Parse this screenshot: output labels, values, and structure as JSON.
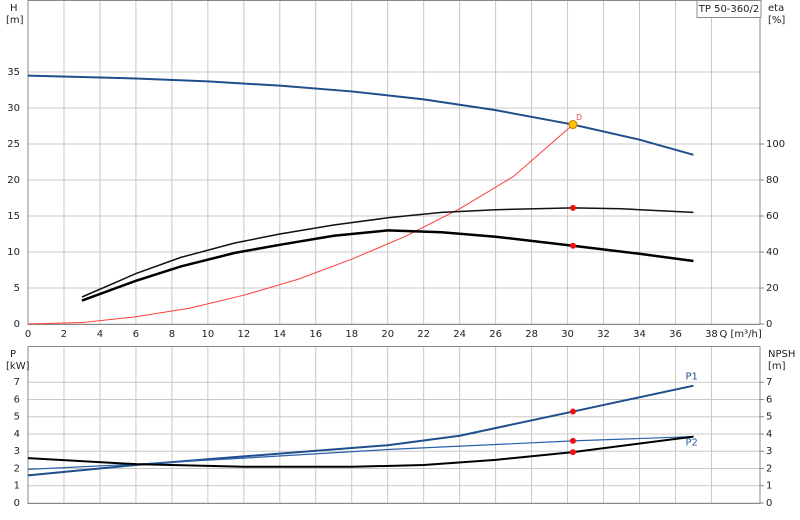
{
  "chart_data": [
    {
      "type": "line",
      "title": "TP 50-360/2",
      "y_label": "H",
      "y_unit": "[m]",
      "y2_label": "eta",
      "y2_unit": "[%]",
      "x_label": "Q [m³/h]",
      "annotation": "D",
      "xlim": [
        0,
        40.7
      ],
      "xticks": [
        0,
        2,
        4,
        6,
        8,
        10,
        12,
        14,
        16,
        18,
        20,
        22,
        24,
        26,
        28,
        30,
        32,
        34,
        36,
        38
      ],
      "ylim": [
        0,
        45
      ],
      "yticks": [
        0,
        5,
        10,
        15,
        20,
        25,
        30,
        35
      ],
      "y2lim": [
        0,
        180
      ],
      "y2ticks": [
        0,
        20,
        40,
        60,
        80,
        100
      ],
      "grid": true,
      "series": [
        {
          "color": "#1f4e8c",
          "width": 2,
          "x": [
            0,
            3,
            6,
            10,
            14,
            18,
            22,
            26,
            30.3,
            34,
            37
          ],
          "values": [
            34.5,
            34.3,
            34.1,
            33.7,
            33.1,
            32.3,
            31.2,
            29.7,
            27.7,
            25.6,
            23.5
          ]
        },
        {
          "color": "#ff3b3b",
          "width": 1,
          "x": [
            0,
            3,
            6,
            9,
            12,
            15,
            18,
            21,
            24,
            27,
            30.3
          ],
          "values": [
            0,
            0.2,
            1,
            2.2,
            4,
            6.2,
            9,
            12.2,
            16,
            20.5,
            27.7
          ]
        },
        {
          "color": "#111111",
          "width": 1.5,
          "axis": "y2",
          "x": [
            3,
            6,
            8.5,
            11.5,
            14,
            17,
            20,
            23,
            26,
            30.3,
            33,
            37
          ],
          "values": [
            15,
            28,
            37,
            45,
            50,
            55,
            59,
            62,
            63.5,
            64.5,
            64,
            62
          ]
        },
        {
          "color": "#000000",
          "width": 2.5,
          "axis": "y2",
          "x": [
            3,
            6,
            8.5,
            11.5,
            14,
            17,
            20,
            23,
            26,
            30.3,
            34,
            37
          ],
          "values": [
            13,
            24,
            32,
            39.5,
            44,
            49,
            52,
            51,
            48.5,
            43.5,
            39,
            35
          ]
        }
      ],
      "duty_points": [
        {
          "x": 30.3,
          "y": 27.7,
          "color": "#ffc000"
        },
        {
          "x": 30.3,
          "y": 64.5,
          "axis": "y2",
          "color": "#ee1111"
        },
        {
          "x": 30.3,
          "y": 43.5,
          "axis": "y2",
          "color": "#ee1111"
        }
      ]
    },
    {
      "type": "line",
      "y_label": "P",
      "y_unit": "[kW]",
      "y2_label": "NPSH",
      "y2_unit": "[m]",
      "xlim": [
        0,
        40.7
      ],
      "xticks": [
        0,
        2,
        4,
        6,
        8,
        10,
        12,
        14,
        16,
        18,
        20,
        22,
        24,
        26,
        28,
        30,
        32,
        34,
        36,
        38
      ],
      "ylim": [
        0,
        9.1
      ],
      "yticks": [
        0,
        1,
        2,
        3,
        4,
        5,
        6,
        7
      ],
      "y2lim": [
        0,
        9.1
      ],
      "y2ticks": [
        0,
        1,
        2,
        3,
        4,
        5,
        6,
        7
      ],
      "grid": true,
      "series": [
        {
          "name": "P1",
          "color": "#1f4e8c",
          "width": 2,
          "x": [
            0,
            6,
            12,
            20,
            24,
            30.3,
            37
          ],
          "values": [
            1.6,
            2.2,
            2.7,
            3.35,
            3.9,
            5.3,
            6.8
          ]
        },
        {
          "name": "P2",
          "color": "#2a5faa",
          "width": 1.2,
          "x": [
            0,
            6,
            12,
            20,
            30.3,
            37
          ],
          "values": [
            1.95,
            2.25,
            2.6,
            3.1,
            3.6,
            3.85
          ]
        },
        {
          "color": "#000000",
          "width": 2,
          "axis": "y2",
          "x": [
            0,
            6,
            12,
            18,
            22,
            26,
            30.3,
            37
          ],
          "values": [
            2.6,
            2.25,
            2.1,
            2.1,
            2.2,
            2.5,
            2.95,
            3.85
          ]
        }
      ],
      "duty_points": [
        {
          "x": 30.3,
          "y": 5.3,
          "color": "#ee1111"
        },
        {
          "x": 30.3,
          "y": 3.6,
          "color": "#ee1111"
        },
        {
          "x": 30.3,
          "y": 2.95,
          "axis": "y2",
          "color": "#ee1111"
        }
      ]
    }
  ]
}
